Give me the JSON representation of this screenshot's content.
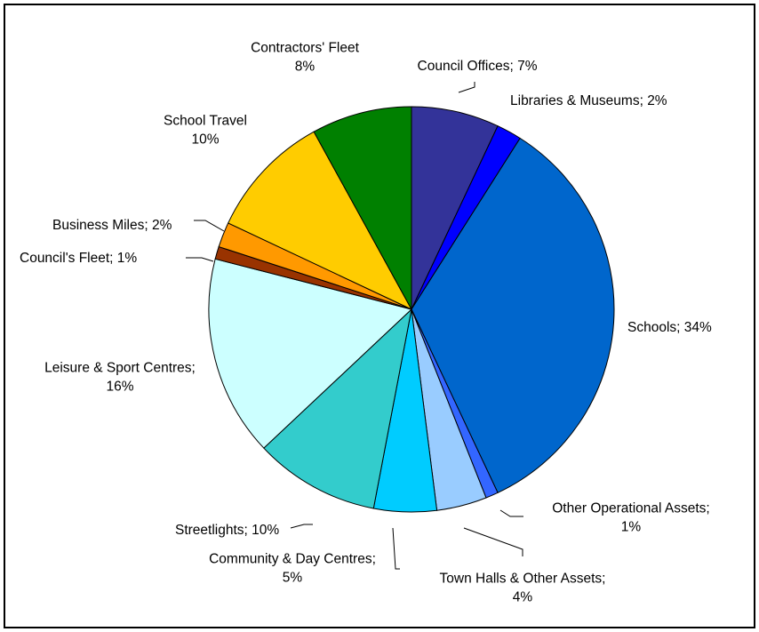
{
  "chart_data": {
    "type": "pie",
    "title": "",
    "start_angle_deg": 0,
    "direction": "clockwise",
    "legend": "none",
    "slices": [
      {
        "label": "Council Offices",
        "value": 7,
        "label_text": [
          "Council Offices; 7%"
        ],
        "color": "#333399"
      },
      {
        "label": "Libraries & Museums",
        "value": 2,
        "label_text": [
          "Libraries & Museums; 2%"
        ],
        "color": "#0000FF"
      },
      {
        "label": "Schools",
        "value": 34,
        "label_text": [
          "Schools; 34%"
        ],
        "color": "#0066CC"
      },
      {
        "label": "Other Operational Assets",
        "value": 1,
        "label_text": [
          "Other Operational Assets;",
          "1%"
        ],
        "color": "#3366FF"
      },
      {
        "label": "Town Halls & Other Assets",
        "value": 4,
        "label_text": [
          "Town Halls & Other Assets;",
          "4%"
        ],
        "color": "#99CCFF"
      },
      {
        "label": "Community & Day Centres",
        "value": 5,
        "label_text": [
          "Community & Day Centres;",
          "5%"
        ],
        "color": "#00CCFF"
      },
      {
        "label": "Streetlights",
        "value": 10,
        "label_text": [
          "Streetlights; 10%"
        ],
        "color": "#33CCCC"
      },
      {
        "label": "Leisure & Sport Centres",
        "value": 16,
        "label_text": [
          "Leisure & Sport Centres;",
          "16%"
        ],
        "color": "#CCFFFF"
      },
      {
        "label": "Council's Fleet",
        "value": 1,
        "label_text": [
          "Council's Fleet; 1%"
        ],
        "color": "#993300"
      },
      {
        "label": "Business Miles",
        "value": 2,
        "label_text": [
          "Business Miles; 2%"
        ],
        "color": "#FF9900"
      },
      {
        "label": "School Travel",
        "value": 10,
        "label_text": [
          "School Travel",
          "10%"
        ],
        "color": "#FFCC00"
      },
      {
        "label": "Contractors' Fleet",
        "value": 8,
        "label_text": [
          "Contractors' Fleet",
          "8%"
        ],
        "color": "#008000"
      }
    ]
  }
}
